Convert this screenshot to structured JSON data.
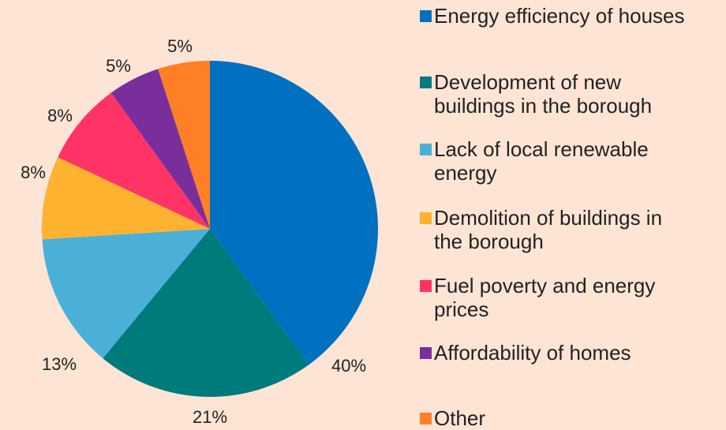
{
  "chart_data": {
    "type": "pie",
    "categories": [
      "Energy efficiency of houses",
      "Development of new buildings in the borough",
      "Lack of local renewable energy",
      "Demolition of buildings in the borough",
      "Fuel poverty and energy prices",
      "Affordability of homes",
      "Other"
    ],
    "values": [
      40,
      21,
      13,
      8,
      8,
      5,
      5
    ],
    "value_labels": [
      "40%",
      "21%",
      "13%",
      "8%",
      "8%",
      "5%",
      "5%"
    ],
    "colors": [
      "#0070c0",
      "#007b7b",
      "#4bb0d8",
      "#ffb230",
      "#ff3366",
      "#7a2e9c",
      "#ff7f27"
    ],
    "legend": "right"
  }
}
